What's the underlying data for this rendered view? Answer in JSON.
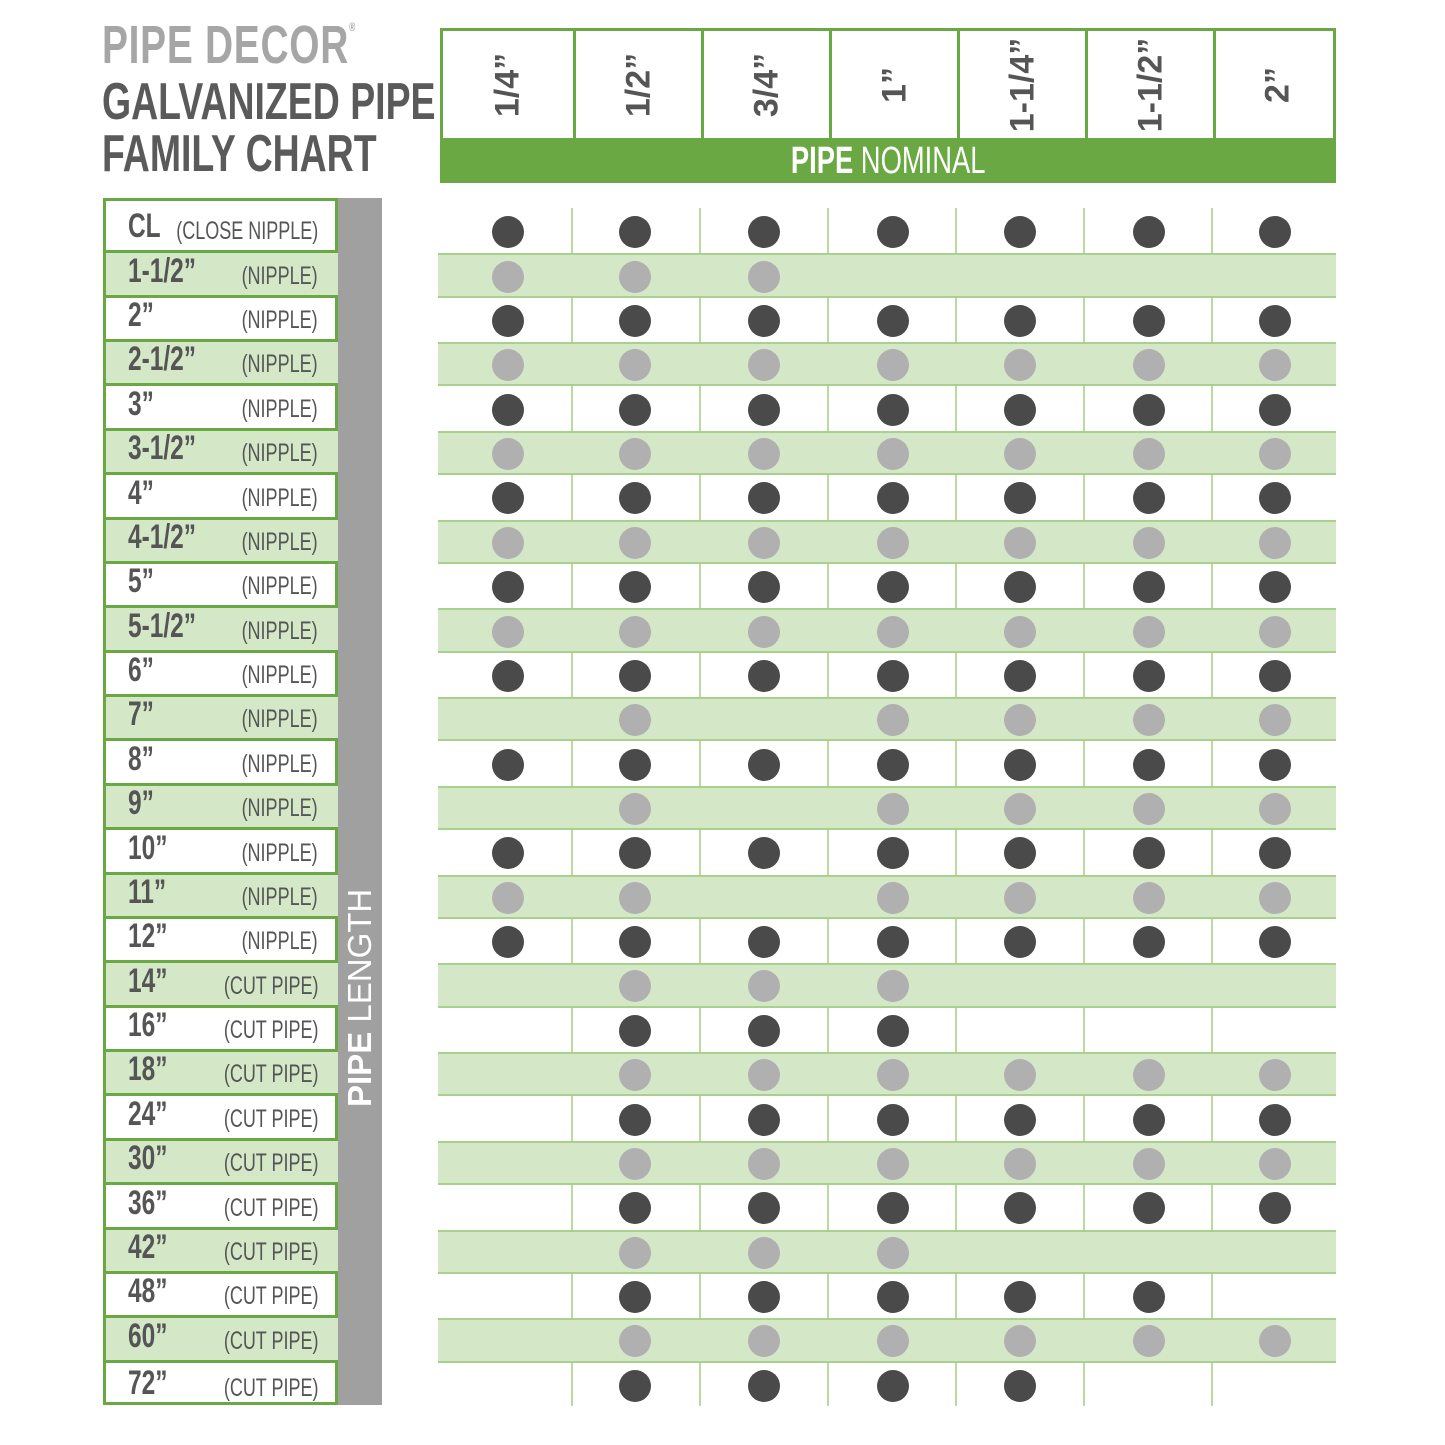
{
  "brand": "PIPE DECOR",
  "brand_mark": "®",
  "title_line1": "GALVANIZED PIPE",
  "title_line2": "FAMILY CHART",
  "colors": {
    "accent": "#6aa843",
    "band": "#d4e8c8",
    "dot_dark": "#4a4a4a",
    "dot_light": "#b0b0b0",
    "length_bar": "#a0a0a0"
  },
  "chart_data": {
    "type": "table",
    "column_axis_label_bold": "PIPE",
    "column_axis_label": "NOMINAL",
    "row_axis_label_bold": "PIPE",
    "row_axis_label": "LENGTH",
    "columns": [
      "1/4”",
      "1/2”",
      "3/4”",
      "1”",
      "1-1/4”",
      "1-1/2”",
      "2”"
    ],
    "rows": [
      {
        "size": "CL",
        "type": "(CLOSE NIPPLE)",
        "avail": [
          1,
          1,
          1,
          1,
          1,
          1,
          1
        ]
      },
      {
        "size": "1-1/2”",
        "type": "(NIPPLE)",
        "avail": [
          1,
          1,
          1,
          0,
          0,
          0,
          0
        ]
      },
      {
        "size": "2”",
        "type": "(NIPPLE)",
        "avail": [
          1,
          1,
          1,
          1,
          1,
          1,
          1
        ]
      },
      {
        "size": "2-1/2”",
        "type": "(NIPPLE)",
        "avail": [
          1,
          1,
          1,
          1,
          1,
          1,
          1
        ]
      },
      {
        "size": "3”",
        "type": "(NIPPLE)",
        "avail": [
          1,
          1,
          1,
          1,
          1,
          1,
          1
        ]
      },
      {
        "size": "3-1/2”",
        "type": "(NIPPLE)",
        "avail": [
          1,
          1,
          1,
          1,
          1,
          1,
          1
        ]
      },
      {
        "size": "4”",
        "type": "(NIPPLE)",
        "avail": [
          1,
          1,
          1,
          1,
          1,
          1,
          1
        ]
      },
      {
        "size": "4-1/2”",
        "type": "(NIPPLE)",
        "avail": [
          1,
          1,
          1,
          1,
          1,
          1,
          1
        ]
      },
      {
        "size": "5”",
        "type": "(NIPPLE)",
        "avail": [
          1,
          1,
          1,
          1,
          1,
          1,
          1
        ]
      },
      {
        "size": "5-1/2”",
        "type": "(NIPPLE)",
        "avail": [
          1,
          1,
          1,
          1,
          1,
          1,
          1
        ]
      },
      {
        "size": "6”",
        "type": "(NIPPLE)",
        "avail": [
          1,
          1,
          1,
          1,
          1,
          1,
          1
        ]
      },
      {
        "size": "7”",
        "type": "(NIPPLE)",
        "avail": [
          0,
          1,
          0,
          1,
          1,
          1,
          1
        ]
      },
      {
        "size": "8”",
        "type": "(NIPPLE)",
        "avail": [
          1,
          1,
          1,
          1,
          1,
          1,
          1
        ]
      },
      {
        "size": "9”",
        "type": "(NIPPLE)",
        "avail": [
          0,
          1,
          0,
          1,
          1,
          1,
          1
        ]
      },
      {
        "size": "10”",
        "type": "(NIPPLE)",
        "avail": [
          1,
          1,
          1,
          1,
          1,
          1,
          1
        ]
      },
      {
        "size": "11”",
        "type": "(NIPPLE)",
        "avail": [
          1,
          1,
          0,
          1,
          1,
          1,
          1
        ]
      },
      {
        "size": "12”",
        "type": "(NIPPLE)",
        "avail": [
          1,
          1,
          1,
          1,
          1,
          1,
          1
        ]
      },
      {
        "size": "14”",
        "type": "(CUT PIPE)",
        "avail": [
          0,
          1,
          1,
          1,
          0,
          0,
          0
        ]
      },
      {
        "size": "16”",
        "type": "(CUT PIPE)",
        "avail": [
          0,
          1,
          1,
          1,
          0,
          0,
          0
        ]
      },
      {
        "size": "18”",
        "type": "(CUT PIPE)",
        "avail": [
          0,
          1,
          1,
          1,
          1,
          1,
          1
        ]
      },
      {
        "size": "24”",
        "type": "(CUT PIPE)",
        "avail": [
          0,
          1,
          1,
          1,
          1,
          1,
          1
        ]
      },
      {
        "size": "30”",
        "type": "(CUT PIPE)",
        "avail": [
          0,
          1,
          1,
          1,
          1,
          1,
          1
        ]
      },
      {
        "size": "36”",
        "type": "(CUT PIPE)",
        "avail": [
          0,
          1,
          1,
          1,
          1,
          1,
          1
        ]
      },
      {
        "size": "42”",
        "type": "(CUT PIPE)",
        "avail": [
          0,
          1,
          1,
          1,
          0,
          0,
          0
        ]
      },
      {
        "size": "48”",
        "type": "(CUT PIPE)",
        "avail": [
          0,
          1,
          1,
          1,
          1,
          1,
          0
        ]
      },
      {
        "size": "60”",
        "type": "(CUT PIPE)",
        "avail": [
          0,
          1,
          1,
          1,
          1,
          1,
          1
        ]
      },
      {
        "size": "72”",
        "type": "(CUT PIPE)",
        "avail": [
          0,
          1,
          1,
          1,
          1,
          0,
          0
        ]
      }
    ]
  }
}
